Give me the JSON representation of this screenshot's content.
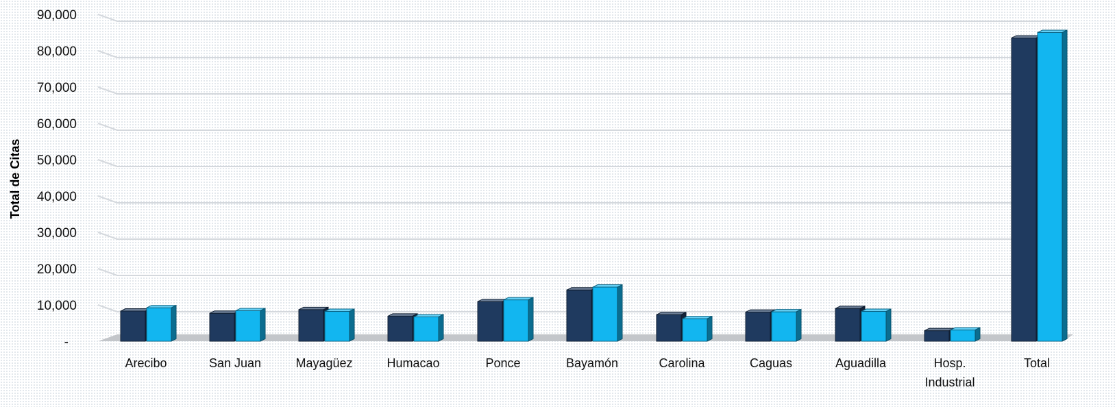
{
  "chart_data": {
    "type": "bar",
    "title": "",
    "xlabel": "",
    "ylabel": "Total de Citas",
    "ylim": [
      0,
      90000
    ],
    "y_ticks": [
      {
        "value": 0,
        "label": "-"
      },
      {
        "value": 10000,
        "label": "10,000"
      },
      {
        "value": 20000,
        "label": "20,000"
      },
      {
        "value": 30000,
        "label": "30,000"
      },
      {
        "value": 40000,
        "label": "40,000"
      },
      {
        "value": 50000,
        "label": "50,000"
      },
      {
        "value": 60000,
        "label": "60,000"
      },
      {
        "value": 70000,
        "label": "70,000"
      },
      {
        "value": 80000,
        "label": "80,000"
      },
      {
        "value": 90000,
        "label": "90,000"
      }
    ],
    "categories": [
      [
        "Arecibo"
      ],
      [
        "San Juan"
      ],
      [
        "Mayagüez"
      ],
      [
        "Humacao"
      ],
      [
        "Ponce"
      ],
      [
        "Bayamón"
      ],
      [
        "Carolina"
      ],
      [
        "Caguas"
      ],
      [
        "Aguadilla"
      ],
      [
        "Hosp.",
        "Industrial"
      ],
      [
        "Total"
      ]
    ],
    "series": [
      {
        "color": "#1f3a5f",
        "values": [
          8300,
          7700,
          8700,
          6900,
          10900,
          14100,
          7300,
          8000,
          9000,
          2900,
          83500
        ]
      },
      {
        "color": "#12b6f0",
        "values": [
          9200,
          8400,
          8200,
          6700,
          11400,
          14900,
          6200,
          8100,
          8200,
          3100,
          85000
        ]
      }
    ],
    "grid": true,
    "legend": "none",
    "style": "3d-clustered-column"
  }
}
